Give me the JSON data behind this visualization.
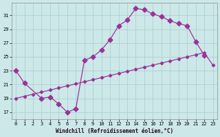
{
  "background_color": "#cce8e8",
  "grid_color": "#aacccc",
  "line_color": "#993399",
  "x_ticks": [
    0,
    1,
    2,
    3,
    4,
    5,
    6,
    7,
    8,
    9,
    10,
    11,
    12,
    13,
    14,
    15,
    16,
    17,
    18,
    19,
    20,
    21,
    22,
    23
  ],
  "y_ticks": [
    17,
    19,
    21,
    23,
    25,
    27,
    29,
    31
  ],
  "ylim": [
    16.0,
    32.8
  ],
  "xlim": [
    -0.5,
    23.5
  ],
  "xlabel": "Windchill (Refroidissement éolien,°C)",
  "curve1_x": [
    0,
    1,
    3,
    4,
    5,
    6,
    7,
    8,
    9,
    10,
    11,
    12,
    13,
    14,
    15,
    16,
    17,
    18,
    19,
    20,
    21,
    22
  ],
  "curve1_y": [
    23.0,
    21.2,
    19.0,
    19.2,
    18.2,
    17.0,
    17.5,
    24.5,
    25.0,
    26.0,
    27.5,
    29.5,
    30.3,
    32.0,
    31.8,
    31.2,
    30.8,
    30.2,
    29.8,
    29.5,
    27.2,
    25.2
  ],
  "curve2_x": [
    0,
    1,
    2,
    3,
    4,
    5,
    6,
    7,
    8,
    9,
    10,
    11,
    12,
    13,
    14,
    15,
    16,
    17,
    18,
    19,
    20,
    21,
    22,
    23
  ],
  "curve2_y": [
    19.0,
    19.3,
    19.6,
    19.9,
    20.2,
    20.5,
    20.8,
    21.1,
    21.4,
    21.7,
    22.0,
    22.3,
    22.6,
    22.9,
    23.2,
    23.5,
    23.8,
    24.1,
    24.4,
    24.7,
    25.0,
    25.3,
    25.6,
    23.8
  ],
  "marker_size": 3.5,
  "marker": "D",
  "linewidth": 0.9,
  "tick_fontsize": 5.0,
  "xlabel_fontsize": 5.5
}
